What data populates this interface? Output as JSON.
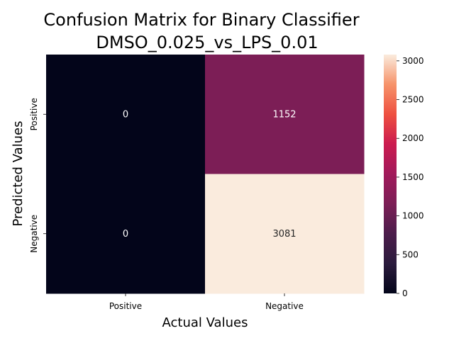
{
  "chart_data": {
    "type": "heatmap",
    "title_lines": [
      "Confusion Matrix for Binary Classifier",
      "DMSO_0.025_vs_LPS_0.01"
    ],
    "xlabel": "Actual Values",
    "ylabel": "Predicted Values",
    "x_categories": [
      "Positive",
      "Negative"
    ],
    "y_categories": [
      "Positive",
      "Negative"
    ],
    "values": [
      [
        0,
        1152
      ],
      [
        0,
        3081
      ]
    ],
    "annotations": [
      [
        "0",
        "1152"
      ],
      [
        "0",
        "3081"
      ]
    ],
    "colorbar": {
      "range": [
        0,
        3081
      ],
      "ticks": [
        0,
        500,
        1000,
        1500,
        2000,
        2500,
        3000
      ],
      "tick_labels": [
        "0",
        "500",
        "1000",
        "1500",
        "2000",
        "2500",
        "3000"
      ],
      "colormap": "rocket"
    }
  }
}
